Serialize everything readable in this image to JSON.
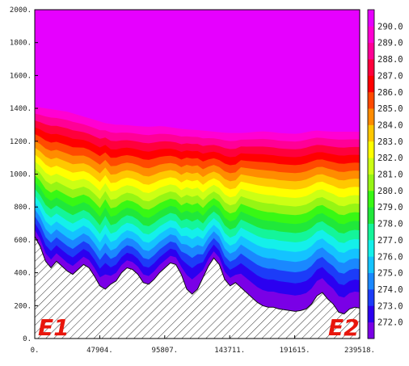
{
  "chart_data": {
    "type": "filled-contour",
    "title": "",
    "xlabel": "",
    "ylabel": "",
    "xlim": [
      0,
      239518
    ],
    "ylim": [
      0,
      2000
    ],
    "x_ticks": [
      "0.",
      "47904.",
      "95807.",
      "143711.",
      "191615.",
      "239518."
    ],
    "y_ticks": [
      "0.",
      "200.",
      "400.",
      "600.",
      "800.",
      "1000.",
      "1200.",
      "1400.",
      "1600.",
      "1800.",
      "2000."
    ],
    "endpoints": {
      "start": "E1",
      "end": "E2"
    },
    "colorbar": {
      "labels": [
        "272.0",
        "273.0",
        "274.0",
        "275.0",
        "276.0",
        "277.0",
        "278.0",
        "279.0",
        "280.0",
        "281.0",
        "282.0",
        "283.0",
        "284.0",
        "285.0",
        "286.0",
        "287.0",
        "288.0",
        "289.0",
        "290.0"
      ],
      "colors": [
        "#7a00e6",
        "#2b00f0",
        "#1c3cf8",
        "#1a88ff",
        "#14c3ff",
        "#14f0ea",
        "#14f59a",
        "#20e83a",
        "#38f814",
        "#96f514",
        "#ccff14",
        "#ffff00",
        "#ffc800",
        "#ff8c00",
        "#ff4a00",
        "#ff0000",
        "#ff003c",
        "#ff0096",
        "#ff00d2",
        "#e600ff"
      ]
    },
    "terrain": {
      "x": [
        0,
        4000,
        8000,
        12000,
        16000,
        20000,
        24000,
        28000,
        32000,
        36000,
        40000,
        44000,
        48000,
        52000,
        56000,
        60000,
        64000,
        68000,
        72000,
        76000,
        80000,
        84000,
        88000,
        92000,
        96000,
        100000,
        104000,
        108000,
        112000,
        116000,
        120000,
        124000,
        128000,
        132000,
        136000,
        140000,
        144000,
        148000,
        152000,
        156000,
        160000,
        164000,
        168000,
        172000,
        176000,
        180000,
        184000,
        188000,
        192000,
        196000,
        200000,
        204000,
        208000,
        212000,
        216000,
        220000,
        224000,
        228000,
        232000,
        236000,
        239518
      ],
      "elevation": [
        620,
        560,
        470,
        430,
        470,
        440,
        410,
        390,
        420,
        450,
        430,
        380,
        320,
        300,
        330,
        350,
        400,
        430,
        420,
        390,
        340,
        330,
        360,
        400,
        430,
        460,
        450,
        390,
        300,
        270,
        300,
        370,
        440,
        490,
        450,
        360,
        320,
        340,
        310,
        280,
        250,
        220,
        200,
        190,
        190,
        180,
        175,
        170,
        165,
        170,
        180,
        210,
        260,
        280,
        240,
        210,
        160,
        150,
        180,
        190,
        185
      ]
    },
    "top_contour_height": [
      1410,
      1405,
      1400,
      1395,
      1390,
      1385,
      1380,
      1370,
      1360,
      1350,
      1340,
      1330,
      1320,
      1310,
      1305,
      1300,
      1300,
      1298,
      1295,
      1292,
      1290,
      1288,
      1290,
      1292,
      1290,
      1285,
      1280,
      1275,
      1272,
      1270,
      1268,
      1265,
      1262,
      1258,
      1255,
      1252,
      1250,
      1250,
      1250,
      1252,
      1255,
      1258,
      1260,
      1258,
      1255,
      1250,
      1248,
      1246,
      1245,
      1248,
      1255,
      1262,
      1265,
      1262,
      1260,
      1258,
      1258,
      1258,
      1258,
      1258,
      1258
    ],
    "surface_value": 290.5,
    "lapse_rate_per_m": 0.0065
  }
}
